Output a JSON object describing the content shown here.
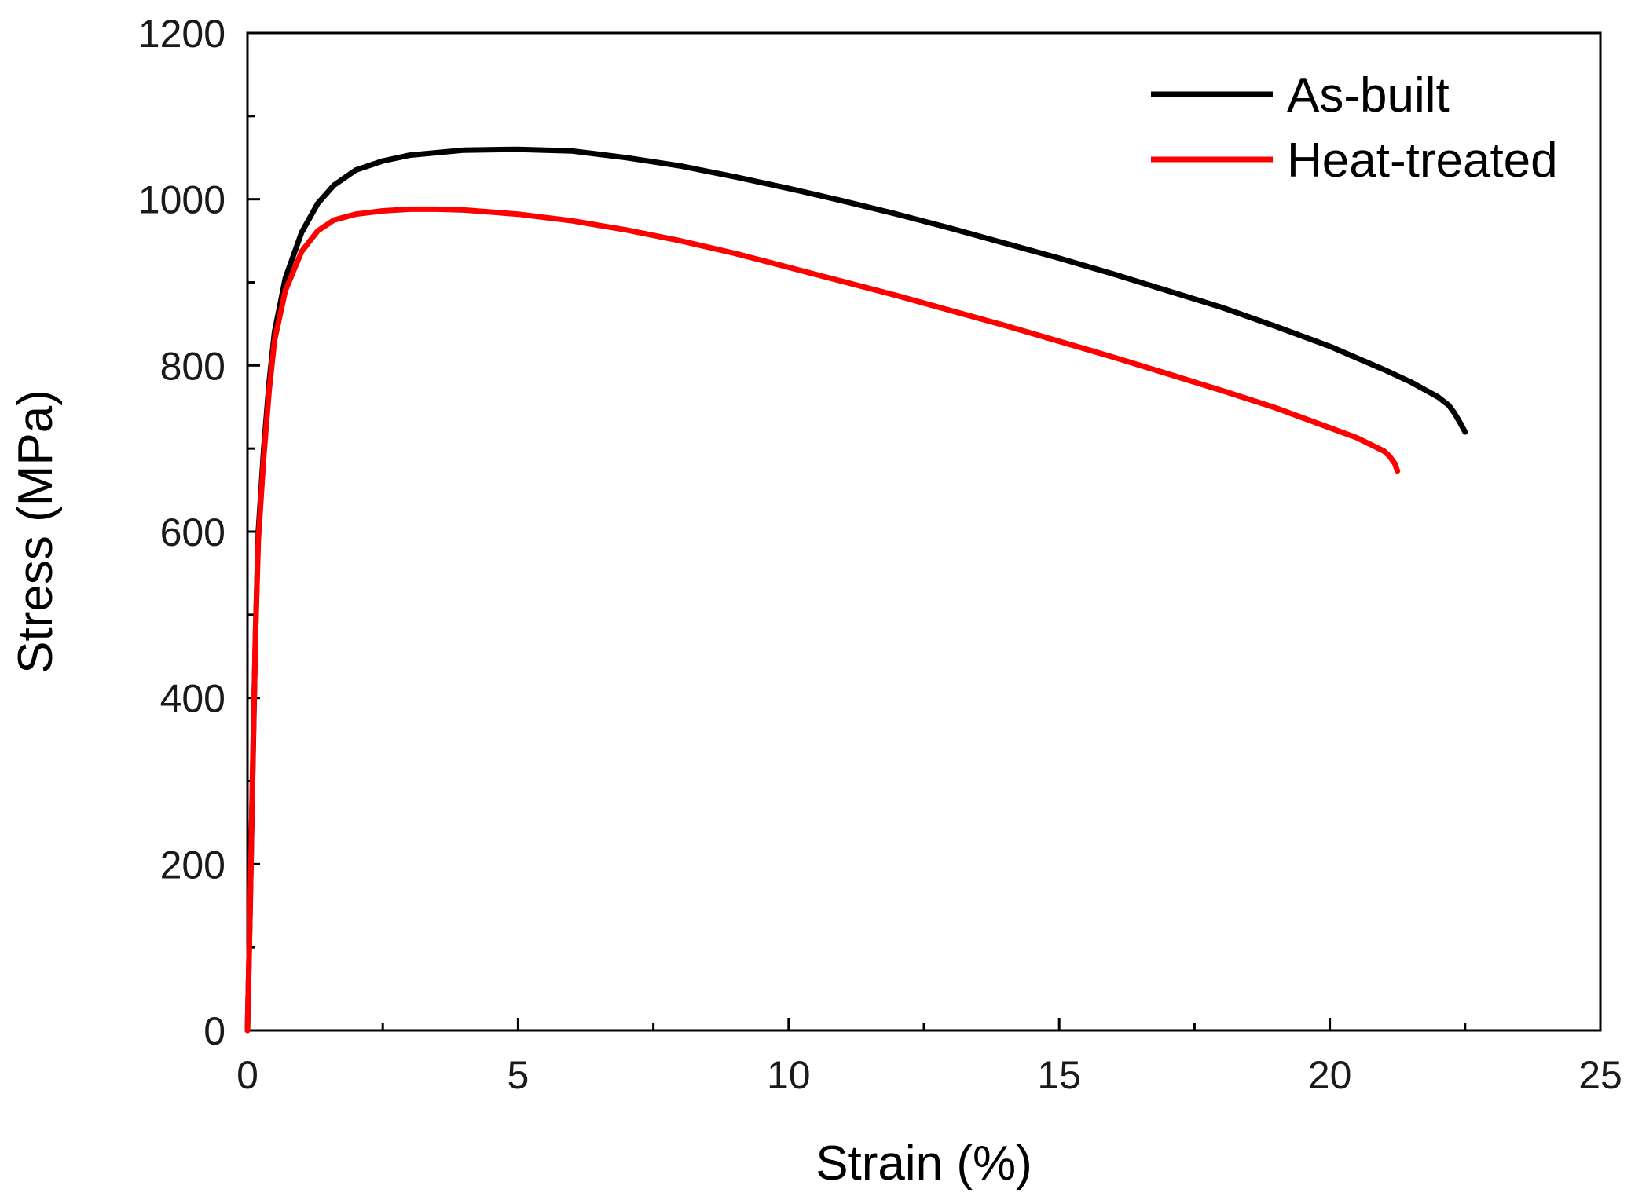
{
  "chart_data": {
    "type": "line",
    "title": "",
    "xlabel": "Strain (%)",
    "ylabel": "Stress (MPa)",
    "xlim": [
      0,
      25
    ],
    "ylim": [
      0,
      1200
    ],
    "xticks": [
      0,
      5,
      10,
      15,
      20,
      25
    ],
    "yticks": [
      0,
      200,
      400,
      600,
      800,
      1000,
      1200
    ],
    "x_minor_step": 2.5,
    "y_minor_step": 100,
    "grid": false,
    "legend_position": "top-right",
    "series": [
      {
        "name": "As-built",
        "color": "#000000",
        "points": [
          [
            0,
            0
          ],
          [
            0.05,
            150
          ],
          [
            0.1,
            320
          ],
          [
            0.15,
            480
          ],
          [
            0.2,
            600
          ],
          [
            0.3,
            700
          ],
          [
            0.4,
            780
          ],
          [
            0.5,
            840
          ],
          [
            0.7,
            905
          ],
          [
            1.0,
            960
          ],
          [
            1.3,
            995
          ],
          [
            1.6,
            1017
          ],
          [
            2.0,
            1035
          ],
          [
            2.5,
            1046
          ],
          [
            3.0,
            1053
          ],
          [
            4.0,
            1059
          ],
          [
            5.0,
            1060
          ],
          [
            6.0,
            1058
          ],
          [
            7.0,
            1050
          ],
          [
            8.0,
            1040
          ],
          [
            9.0,
            1027
          ],
          [
            10.0,
            1013
          ],
          [
            11.0,
            998
          ],
          [
            12.0,
            982
          ],
          [
            13.0,
            965
          ],
          [
            14.0,
            947
          ],
          [
            15.0,
            929
          ],
          [
            16.0,
            910
          ],
          [
            17.0,
            890
          ],
          [
            18.0,
            870
          ],
          [
            19.0,
            847
          ],
          [
            20.0,
            823
          ],
          [
            21.0,
            795
          ],
          [
            21.5,
            780
          ],
          [
            22.0,
            762
          ],
          [
            22.2,
            752
          ],
          [
            22.3,
            743
          ],
          [
            22.4,
            732
          ],
          [
            22.5,
            720
          ]
        ]
      },
      {
        "name": "Heat-treated",
        "color": "#ff0000",
        "points": [
          [
            0,
            0
          ],
          [
            0.05,
            150
          ],
          [
            0.1,
            330
          ],
          [
            0.15,
            480
          ],
          [
            0.2,
            590
          ],
          [
            0.3,
            690
          ],
          [
            0.4,
            770
          ],
          [
            0.5,
            830
          ],
          [
            0.7,
            890
          ],
          [
            1.0,
            937
          ],
          [
            1.3,
            962
          ],
          [
            1.6,
            975
          ],
          [
            2.0,
            982
          ],
          [
            2.5,
            986
          ],
          [
            3.0,
            988
          ],
          [
            3.5,
            988
          ],
          [
            4.0,
            987
          ],
          [
            5.0,
            982
          ],
          [
            6.0,
            974
          ],
          [
            7.0,
            963
          ],
          [
            8.0,
            950
          ],
          [
            9.0,
            935
          ],
          [
            10.0,
            918
          ],
          [
            11.0,
            901
          ],
          [
            12.0,
            884
          ],
          [
            13.0,
            866
          ],
          [
            14.0,
            848
          ],
          [
            15.0,
            829
          ],
          [
            16.0,
            810
          ],
          [
            17.0,
            790
          ],
          [
            18.0,
            770
          ],
          [
            19.0,
            749
          ],
          [
            20.0,
            725
          ],
          [
            20.5,
            713
          ],
          [
            21.0,
            697
          ],
          [
            21.1,
            691
          ],
          [
            21.2,
            682
          ],
          [
            21.25,
            673
          ]
        ]
      }
    ]
  }
}
